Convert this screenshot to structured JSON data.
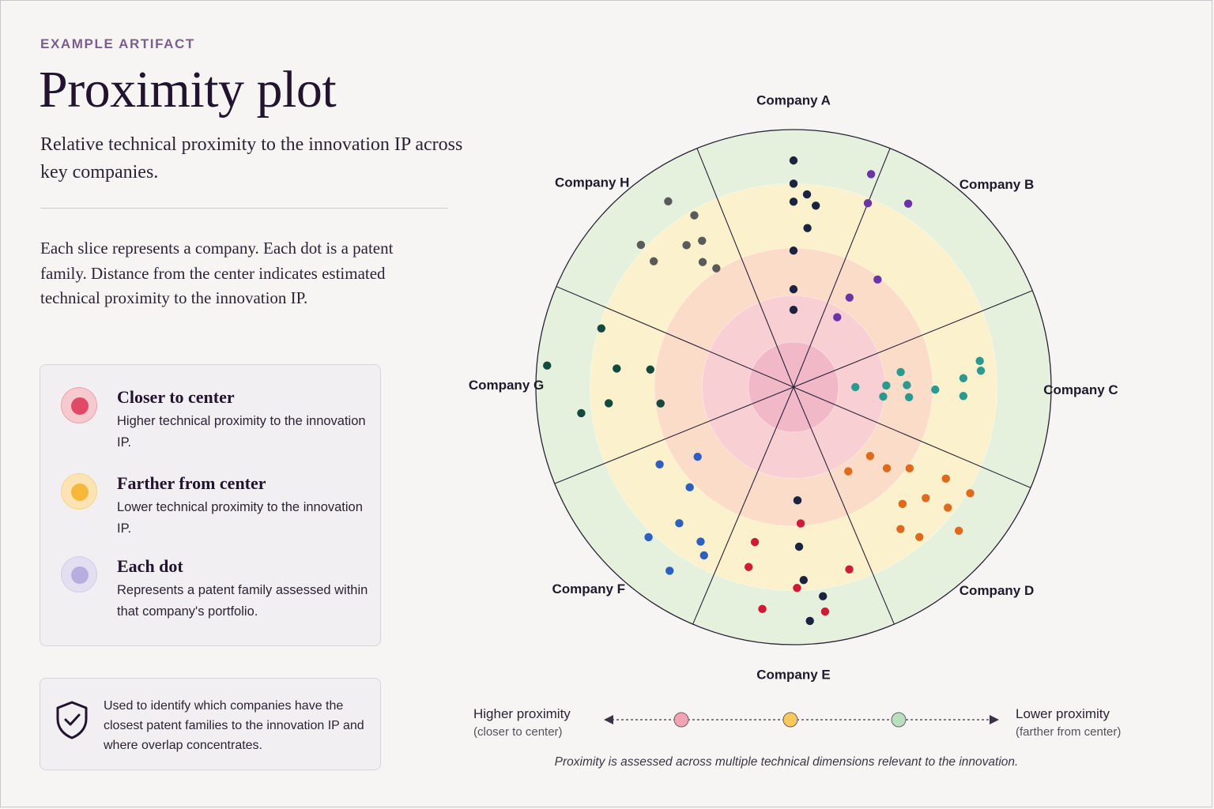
{
  "eyebrow": "EXAMPLE ARTIFACT",
  "title": "Proximity plot",
  "subtitle": "Relative technical proximity to the innovation IP across key companies.",
  "description": "Each slice represents a company. Each dot is a patent family. Distance from the center indicates estimated technical proximity to the innovation IP.",
  "legend": {
    "items": [
      {
        "heading": "Closer to center",
        "text": "Higher technical proximity to the innovation IP.",
        "outer_color": "#f6c9cf",
        "inner_color": "#e04a66"
      },
      {
        "heading": "Farther from center",
        "text": "Lower technical proximity to the innovation IP.",
        "outer_color": "#fbe3b3",
        "inner_color": "#f6b73a"
      },
      {
        "heading": "Each dot",
        "text": "Represents a patent family assessed within that company's portfolio.",
        "outer_color": "#e3def0",
        "inner_color": "#b7aee0"
      }
    ]
  },
  "note": {
    "icon": "shield-check-icon",
    "text": "Used to identify which companies have the closest patent families to the innovation IP and where overlap concentrates."
  },
  "scale": {
    "left_label": "Higher proximity",
    "left_sub": "(closer to center)",
    "right_label": "Lower proximity",
    "right_sub": "(farther from center)",
    "stops": [
      "#f2a3b4",
      "#f9c85a",
      "#b8e0bf"
    ]
  },
  "footnote": "Proximity is assessed across multiple technical dimensions relevant to the innovation.",
  "chart_data": {
    "type": "scatter",
    "title": "",
    "coordinate_system": "polar",
    "radial_range": [
      0,
      1
    ],
    "rings": [
      {
        "outer_radius": 0.175,
        "color": "#f1b8c8"
      },
      {
        "outer_radius": 0.355,
        "color": "#f8cfd2"
      },
      {
        "outer_radius": 0.54,
        "color": "#fbdcc8"
      },
      {
        "outer_radius": 0.79,
        "color": "#fcf1cd"
      },
      {
        "outer_radius": 1.0,
        "color": "#e5f1dc"
      }
    ],
    "series": [
      {
        "name": "Company A",
        "color": "#1a2440",
        "points": [
          {
            "r": 0.91,
            "a": 176
          },
          {
            "r": 0.88,
            "a": 0
          },
          {
            "r": 0.82,
            "a": 172
          },
          {
            "r": 0.79,
            "a": 0
          },
          {
            "r": 0.75,
            "a": 177
          },
          {
            "r": 0.75,
            "a": 4
          },
          {
            "r": 0.72,
            "a": 0
          },
          {
            "r": 0.71,
            "a": 7
          },
          {
            "r": 0.62,
            "a": 178
          },
          {
            "r": 0.62,
            "a": 5
          },
          {
            "r": 0.53,
            "a": 0
          },
          {
            "r": 0.44,
            "a": 178
          },
          {
            "r": 0.38,
            "a": 0
          },
          {
            "r": 0.3,
            "a": 0
          }
        ]
      },
      {
        "name": "Company B",
        "color": "#6b33a8",
        "points": [
          {
            "r": 0.88,
            "a": 20
          },
          {
            "r": 0.77,
            "a": 22
          },
          {
            "r": 0.84,
            "a": 32
          },
          {
            "r": 0.53,
            "a": 38
          },
          {
            "r": 0.41,
            "a": 32
          },
          {
            "r": 0.32,
            "a": 32
          }
        ]
      },
      {
        "name": "Company C",
        "color": "#2a9a91",
        "points": [
          {
            "r": 0.73,
            "a": 82
          },
          {
            "r": 0.73,
            "a": 85
          },
          {
            "r": 0.66,
            "a": 87
          },
          {
            "r": 0.55,
            "a": 91
          },
          {
            "r": 0.66,
            "a": 93
          },
          {
            "r": 0.42,
            "a": 82
          },
          {
            "r": 0.44,
            "a": 89
          },
          {
            "r": 0.45,
            "a": 95
          },
          {
            "r": 0.36,
            "a": 89
          },
          {
            "r": 0.35,
            "a": 96
          },
          {
            "r": 0.24,
            "a": 90
          }
        ]
      },
      {
        "name": "Company D",
        "color": "#e06a1c",
        "points": [
          {
            "r": 0.4,
            "a": 132
          },
          {
            "r": 0.39,
            "a": 147
          },
          {
            "r": 0.48,
            "a": 131
          },
          {
            "r": 0.55,
            "a": 125
          },
          {
            "r": 0.69,
            "a": 121
          },
          {
            "r": 0.62,
            "a": 137
          },
          {
            "r": 0.67,
            "a": 130
          },
          {
            "r": 0.69,
            "a": 143
          },
          {
            "r": 0.8,
            "a": 121
          },
          {
            "r": 0.76,
            "a": 128
          },
          {
            "r": 0.85,
            "a": 131
          },
          {
            "r": 0.76,
            "a": 140
          }
        ]
      },
      {
        "name": "Company E",
        "color": "#d01a36",
        "points": [
          {
            "r": 0.53,
            "a": 177
          },
          {
            "r": 0.62,
            "a": 194
          },
          {
            "r": 0.72,
            "a": 194
          },
          {
            "r": 0.78,
            "a": 179
          },
          {
            "r": 0.74,
            "a": 163
          },
          {
            "r": 0.87,
            "a": 188
          },
          {
            "r": 0.88,
            "a": 172
          }
        ]
      },
      {
        "name": "Company F",
        "color": "#2d5fbf",
        "points": [
          {
            "r": 0.46,
            "a": 234
          },
          {
            "r": 0.56,
            "a": 226
          },
          {
            "r": 0.6,
            "a": 240
          },
          {
            "r": 0.69,
            "a": 220
          },
          {
            "r": 0.74,
            "a": 208
          },
          {
            "r": 0.7,
            "a": 211
          },
          {
            "r": 0.81,
            "a": 224
          },
          {
            "r": 0.86,
            "a": 214
          }
        ]
      },
      {
        "name": "Company G",
        "color": "#134a3e",
        "points": [
          {
            "r": 0.52,
            "a": 263
          },
          {
            "r": 0.56,
            "a": 277
          },
          {
            "r": 0.69,
            "a": 276
          },
          {
            "r": 0.72,
            "a": 265
          },
          {
            "r": 0.78,
            "a": 287
          },
          {
            "r": 0.83,
            "a": 263
          },
          {
            "r": 0.96,
            "a": 275
          }
        ]
      },
      {
        "name": "Company H",
        "color": "#5a5a5a",
        "points": [
          {
            "r": 0.55,
            "a": 327
          },
          {
            "r": 0.6,
            "a": 324
          },
          {
            "r": 0.67,
            "a": 328
          },
          {
            "r": 0.69,
            "a": 323
          },
          {
            "r": 0.77,
            "a": 330
          },
          {
            "r": 0.81,
            "a": 313
          },
          {
            "r": 0.73,
            "a": 312
          },
          {
            "r": 0.87,
            "a": 326
          }
        ]
      }
    ],
    "categories": [
      "Company A",
      "Company B",
      "Company C",
      "Company D",
      "Company E",
      "Company F",
      "Company G",
      "Company H"
    ],
    "slice_boundaries_deg": [
      338,
      22,
      68,
      113,
      157,
      203,
      248,
      293
    ]
  }
}
